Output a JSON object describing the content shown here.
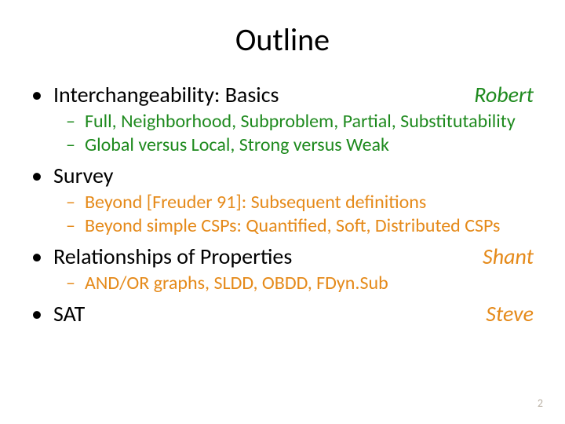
{
  "title": "Outline",
  "colors": {
    "title": "#000000",
    "bullet_level1": "#000000",
    "presenter_green": "#1e8a1e",
    "subtext_green": "#1e8a1e",
    "presenter_orange": "#e58a1a",
    "subtext_orange": "#e58a1a",
    "pagenum": "#b9b0a4",
    "background": "#ffffff"
  },
  "typography": {
    "title_fontsize_pt": 40,
    "level1_fontsize_pt": 28,
    "level2_fontsize_pt": 24,
    "presenter_fontstyle": "italic",
    "font_family": "Calibri"
  },
  "sections": [
    {
      "heading": "Interchangeability: Basics",
      "presenter": "Robert",
      "presenter_color": "green",
      "sub_color": "green",
      "sub": [
        "Full, Neighborhood, Subproblem, Partial, Substitutability",
        "Global versus Local, Strong versus Weak"
      ]
    },
    {
      "heading": "Survey",
      "presenter": "",
      "presenter_color": "",
      "sub_color": "orange",
      "sub": [
        "Beyond [Freuder 91]: Subsequent definitions",
        "Beyond simple CSPs: Quantified, Soft, Distributed CSPs"
      ]
    },
    {
      "heading": "Relationships of Properties",
      "presenter": "Shant",
      "presenter_color": "orange",
      "sub_color": "orange",
      "sub": [
        "AND/OR graphs, SLDD, OBDD, FDyn.Sub"
      ]
    },
    {
      "heading": "SAT",
      "presenter": "Steve",
      "presenter_color": "orange",
      "sub_color": "",
      "sub": []
    }
  ],
  "page_number": "2"
}
